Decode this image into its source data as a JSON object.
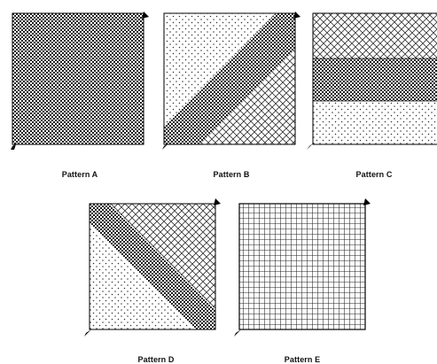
{
  "figure": {
    "panels": [
      {
        "id": "A",
        "caption": "Pattern A",
        "regions": [
          "checker"
        ]
      },
      {
        "id": "B",
        "caption": "Pattern B",
        "regions": [
          "dots",
          "checker-band",
          "crosshatch"
        ]
      },
      {
        "id": "C",
        "caption": "Pattern C",
        "regions": [
          "crosshatch",
          "checker",
          "dots"
        ]
      },
      {
        "id": "D",
        "caption": "Pattern D",
        "regions": [
          "dots",
          "checker-band",
          "crosshatch"
        ]
      },
      {
        "id": "E",
        "caption": "Pattern E",
        "regions": [
          "grid"
        ]
      }
    ]
  }
}
